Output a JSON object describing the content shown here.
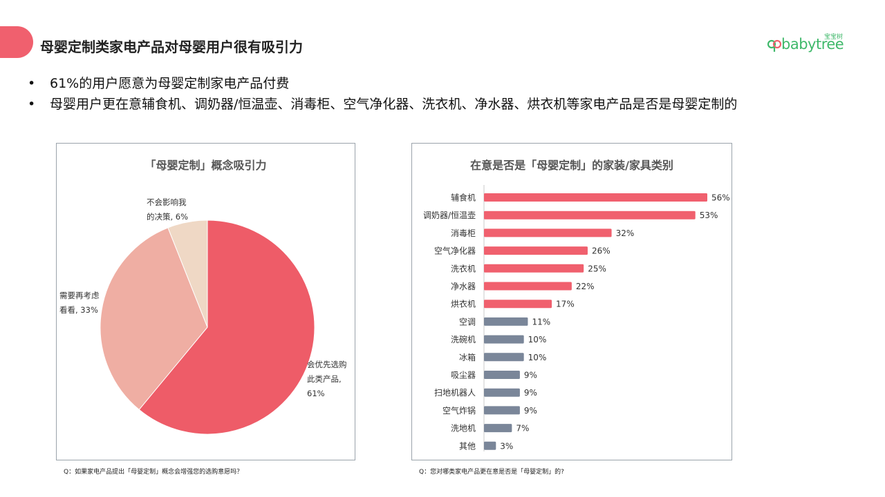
{
  "header": {
    "title": "母婴定制类家电产品对母婴用户很有吸引力"
  },
  "logo": {
    "text": "babytree",
    "sub": "宝宝树"
  },
  "bullets": [
    "61%的用户愿意为母婴定制家电产品付费",
    "母婴用户更在意辅食机、调奶器/恒温壶、消毒柜、空气净化器、洗衣机、净水器、烘衣机等家电产品是否是母婴定制的"
  ],
  "colors": {
    "accent": "#f0606e",
    "bar_highlight": "#f0606e",
    "bar_muted": "#7a8699",
    "pie_main": "#ee5c68",
    "pie_second": "#efaea3",
    "pie_third": "#efd8c5",
    "logo_green": "#3fb86a"
  },
  "chart_data": [
    {
      "type": "pie",
      "title": "「母婴定制」概念吸引力",
      "slices": [
        {
          "label_lines": [
            "会优先选购",
            "此类产品,",
            "61%"
          ],
          "value": 61
        },
        {
          "label_lines": [
            "需要再考虑",
            "看看, 33%"
          ],
          "value": 33
        },
        {
          "label_lines": [
            "不会影响我",
            "的决策, 6%"
          ],
          "value": 6
        }
      ],
      "footnote": "Q：如果家电产品提出「母婴定制」概念会增强您的选购意愿吗？"
    },
    {
      "type": "bar",
      "orientation": "horizontal",
      "title": "在意是否是「母婴定制」的家装/家具类别",
      "categories": [
        "辅食机",
        "调奶器/恒温壶",
        "消毒柜",
        "空气净化器",
        "洗衣机",
        "净水器",
        "烘衣机",
        "空调",
        "洗碗机",
        "冰箱",
        "吸尘器",
        "扫地机器人",
        "空气炸锅",
        "洗地机",
        "其他"
      ],
      "values": [
        56,
        53,
        32,
        26,
        25,
        22,
        17,
        11,
        10,
        10,
        9,
        9,
        9,
        7,
        3
      ],
      "value_labels": [
        "56%",
        "53%",
        "32%",
        "26%",
        "25%",
        "22%",
        "17%",
        "11%",
        "10%",
        "10%",
        "9%",
        "9%",
        "9%",
        "7%",
        "3%"
      ],
      "highlight_count": 7,
      "xlim": [
        0,
        56
      ],
      "footnote": "Q：您对哪类家电产品更在意是否是「母婴定制」的?"
    }
  ]
}
